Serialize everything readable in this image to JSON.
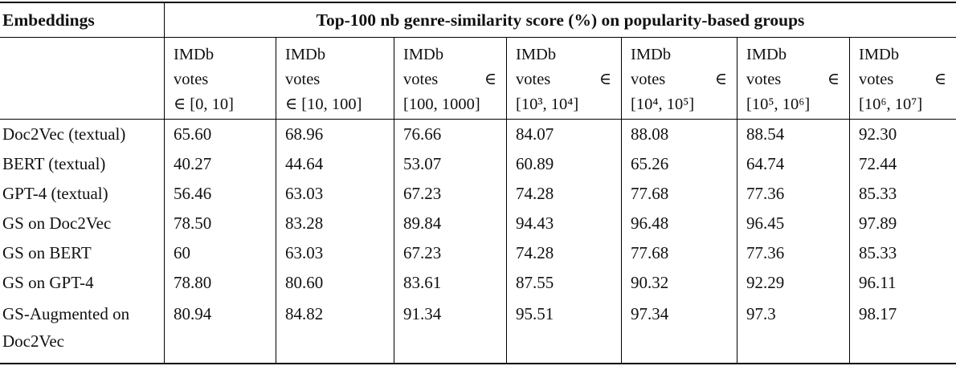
{
  "table": {
    "col1_header": "Embeddings",
    "span_header": "Top-100 nb genre-similarity score (%) on popularity-based groups",
    "columns": [
      {
        "l1": "IMDb",
        "l2": "votes",
        "l2_end": "",
        "l3": "∈ [0, 10]"
      },
      {
        "l1": "IMDb",
        "l2": "votes",
        "l2_end": "",
        "l3": "∈ [10, 100]"
      },
      {
        "l1": "IMDb",
        "l2": "votes",
        "l2_end": "∈",
        "l3": "[100, 1000]"
      },
      {
        "l1": "IMDb",
        "l2": "votes",
        "l2_end": "∈",
        "l3": "[10³, 10⁴]"
      },
      {
        "l1": "IMDb",
        "l2": "votes",
        "l2_end": "∈",
        "l3": "[10⁴, 10⁵]"
      },
      {
        "l1": "IMDb",
        "l2": "votes",
        "l2_end": "∈",
        "l3": "[10⁵, 10⁶]"
      },
      {
        "l1": "IMDb",
        "l2": "votes",
        "l2_end": "∈",
        "l3": "[10⁶, 10⁷]"
      }
    ],
    "rows": [
      {
        "label": "Doc2Vec (textual)",
        "values": [
          "65.60",
          "68.96",
          "76.66",
          "84.07",
          "88.08",
          "88.54",
          "92.30"
        ]
      },
      {
        "label": "BERT (textual)",
        "values": [
          "40.27",
          "44.64",
          "53.07",
          "60.89",
          "65.26",
          "64.74",
          "72.44"
        ]
      },
      {
        "label": "GPT-4 (textual)",
        "values": [
          "56.46",
          "63.03",
          "67.23",
          "74.28",
          "77.68",
          "77.36",
          "85.33"
        ]
      },
      {
        "label": "GS on Doc2Vec",
        "values": [
          "78.50",
          "83.28",
          "89.84",
          "94.43",
          "96.48",
          "96.45",
          "97.89"
        ]
      },
      {
        "label": "GS on BERT",
        "values": [
          "60",
          "63.03",
          "67.23",
          "74.28",
          "77.68",
          "77.36",
          "85.33"
        ]
      },
      {
        "label": "GS on GPT-4",
        "values": [
          "78.80",
          "80.60",
          "83.61",
          "87.55",
          "90.32",
          "92.29",
          "96.11"
        ]
      },
      {
        "label": "GS-Augmented on Doc2Vec",
        "values": [
          "80.94",
          "84.82",
          "91.34",
          "95.51",
          "97.34",
          "97.3",
          "98.17"
        ]
      }
    ]
  }
}
